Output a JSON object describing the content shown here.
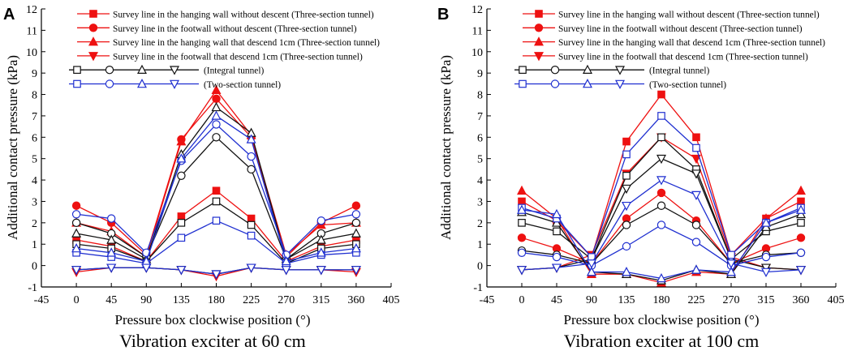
{
  "colors": {
    "red": "#ee1111",
    "black": "#111111",
    "blue": "#1f2fd0",
    "axis": "#000000"
  },
  "legend_entries": [
    "Survey line in the hanging wall without descent (Three-section tunnel)",
    "Survey line in the footwall without descent (Three-section tunnel)",
    "Survey line in the hanging wall that descend 1cm (Three-section tunnel)",
    "Survey line in the footwall that descend 1cm (Three-section tunnel)",
    "(Integral tunnel)",
    "(Two-section tunnel)"
  ],
  "chart_data": [
    {
      "type": "line",
      "panel": "A",
      "caption": "Vibration exciter at 60 cm",
      "xlabel": "Pressure box clockwise position (°)",
      "ylabel": "Additional contact pressure (kPa)",
      "xlim": [
        -45,
        405
      ],
      "ylim": [
        -1,
        12
      ],
      "xticks": [
        -45,
        0,
        45,
        90,
        135,
        180,
        225,
        270,
        315,
        360,
        405
      ],
      "yticks": [
        -1,
        0,
        1,
        2,
        3,
        4,
        5,
        6,
        7,
        8,
        9,
        10,
        11,
        12
      ],
      "x": [
        0,
        45,
        90,
        135,
        180,
        225,
        270,
        315,
        360
      ],
      "series": [
        {
          "name": "Survey line in the hanging wall without descent (Three-section tunnel)",
          "tunnel": "three",
          "marker": "square",
          "values": [
            1.2,
            0.9,
            0.2,
            2.3,
            3.5,
            2.2,
            0.2,
            0.9,
            1.2
          ]
        },
        {
          "name": "Survey line in the footwall without descent (Three-section tunnel)",
          "tunnel": "three",
          "marker": "circle",
          "values": [
            2.8,
            2.0,
            0.5,
            5.9,
            7.8,
            6.0,
            0.4,
            2.0,
            2.8
          ]
        },
        {
          "name": "Survey line in the hanging wall that descend 1cm (Three-section tunnel)",
          "tunnel": "three",
          "marker": "triangle-up",
          "values": [
            2.0,
            1.6,
            0.4,
            5.8,
            8.2,
            6.1,
            0.5,
            1.9,
            2.0
          ]
        },
        {
          "name": "Survey line in the footwall that descend 1cm (Three-section tunnel)",
          "tunnel": "three",
          "marker": "triangle-down",
          "values": [
            -0.3,
            -0.1,
            -0.1,
            -0.2,
            -0.5,
            -0.1,
            -0.2,
            -0.2,
            -0.3
          ]
        },
        {
          "name": "Survey line in the hanging wall without descent (Integral tunnel)",
          "tunnel": "integral",
          "marker": "square",
          "values": [
            1.0,
            0.8,
            0.2,
            2.0,
            3.0,
            1.9,
            0.1,
            0.8,
            1.0
          ]
        },
        {
          "name": "Survey line in the footwall without descent (Integral tunnel)",
          "tunnel": "integral",
          "marker": "circle",
          "values": [
            2.0,
            1.5,
            0.4,
            4.2,
            6.0,
            4.5,
            0.3,
            1.5,
            2.0
          ]
        },
        {
          "name": "Survey line in the hanging wall that descend 1cm (Integral tunnel)",
          "tunnel": "integral",
          "marker": "triangle-up",
          "values": [
            1.5,
            1.2,
            0.3,
            5.2,
            7.4,
            6.2,
            0.3,
            1.2,
            1.5
          ]
        },
        {
          "name": "Survey line in the footwall that descend 1cm (Integral tunnel)",
          "tunnel": "integral",
          "marker": "triangle-down",
          "values": [
            -0.2,
            -0.1,
            -0.1,
            -0.2,
            -0.4,
            -0.1,
            -0.2,
            -0.2,
            -0.2
          ]
        },
        {
          "name": "Survey line in the hanging wall without descent (Two-section tunnel)",
          "tunnel": "two",
          "marker": "square",
          "values": [
            0.6,
            0.4,
            0.1,
            1.3,
            2.1,
            1.4,
            0.1,
            0.5,
            0.6
          ]
        },
        {
          "name": "Survey line in the footwall without descent (Two-section tunnel)",
          "tunnel": "two",
          "marker": "circle",
          "values": [
            2.4,
            2.2,
            0.6,
            4.9,
            6.6,
            5.1,
            0.5,
            2.1,
            2.4
          ]
        },
        {
          "name": "Survey line in the hanging wall that descend 1cm (Two-section tunnel)",
          "tunnel": "two",
          "marker": "triangle-up",
          "values": [
            0.8,
            0.6,
            0.2,
            5.0,
            7.0,
            5.9,
            0.2,
            0.6,
            0.8
          ]
        },
        {
          "name": "Survey line in the footwall that descend 1cm (Two-section tunnel)",
          "tunnel": "two",
          "marker": "triangle-down",
          "values": [
            -0.2,
            -0.1,
            -0.1,
            -0.2,
            -0.4,
            -0.1,
            -0.2,
            -0.2,
            -0.2
          ]
        }
      ]
    },
    {
      "type": "line",
      "panel": "B",
      "caption": "Vibration exciter at 100 cm",
      "xlabel": "Pressure box clockwise position (°)",
      "ylabel": "Additional contact pressure (kPa)",
      "xlim": [
        -45,
        405
      ],
      "ylim": [
        -1,
        12
      ],
      "xticks": [
        -45,
        0,
        45,
        90,
        135,
        180,
        225,
        270,
        315,
        360,
        405
      ],
      "yticks": [
        -1,
        0,
        1,
        2,
        3,
        4,
        5,
        6,
        7,
        8,
        9,
        10,
        11,
        12
      ],
      "x": [
        0,
        45,
        90,
        135,
        180,
        225,
        270,
        315,
        360
      ],
      "series": [
        {
          "name": "Survey line in the hanging wall without descent (Three-section tunnel)",
          "tunnel": "three",
          "marker": "square",
          "values": [
            3.0,
            2.1,
            0.4,
            5.8,
            8.0,
            6.0,
            0.5,
            2.2,
            3.0
          ]
        },
        {
          "name": "Survey line in the footwall without descent (Three-section tunnel)",
          "tunnel": "three",
          "marker": "circle",
          "values": [
            1.3,
            0.8,
            0.1,
            2.2,
            3.4,
            2.1,
            0.1,
            0.8,
            1.3
          ]
        },
        {
          "name": "Survey line in the hanging wall that descend 1cm (Three-section tunnel)",
          "tunnel": "three",
          "marker": "triangle-up",
          "values": [
            3.5,
            2.2,
            -0.4,
            -0.4,
            -0.8,
            -0.3,
            -0.4,
            2.2,
            3.5
          ]
        },
        {
          "name": "Survey line in the footwall that descend 1cm (Three-section tunnel)",
          "tunnel": "three",
          "marker": "triangle-down",
          "values": [
            -0.2,
            -0.1,
            0.5,
            4.3,
            6.0,
            5.0,
            0.4,
            -0.1,
            -0.2
          ]
        },
        {
          "name": "Survey line in the hanging wall without descent (Integral tunnel)",
          "tunnel": "integral",
          "marker": "square",
          "values": [
            2.0,
            1.6,
            0.3,
            4.2,
            6.0,
            4.5,
            0.3,
            1.6,
            2.0
          ]
        },
        {
          "name": "Survey line in the footwall without descent (Integral tunnel)",
          "tunnel": "integral",
          "marker": "circle",
          "values": [
            0.7,
            0.5,
            0.1,
            1.9,
            2.8,
            1.9,
            0.1,
            0.5,
            0.6
          ]
        },
        {
          "name": "Survey line in the hanging wall that descend 1cm (Integral tunnel)",
          "tunnel": "integral",
          "marker": "triangle-up",
          "values": [
            2.5,
            2.0,
            -0.3,
            -0.4,
            -0.7,
            -0.2,
            -0.4,
            1.8,
            2.4
          ]
        },
        {
          "name": "Survey line in the footwall that descend 1cm (Integral tunnel)",
          "tunnel": "integral",
          "marker": "triangle-down",
          "values": [
            -0.2,
            -0.1,
            0.3,
            3.6,
            5.0,
            4.3,
            0.3,
            -0.1,
            -0.2
          ]
        },
        {
          "name": "Survey line in the hanging wall without descent (Two-section tunnel)",
          "tunnel": "two",
          "marker": "square",
          "values": [
            2.7,
            2.2,
            0.4,
            5.2,
            7.0,
            5.5,
            0.5,
            2.0,
            2.7
          ]
        },
        {
          "name": "Survey line in the footwall without descent (Two-section tunnel)",
          "tunnel": "two",
          "marker": "circle",
          "values": [
            0.6,
            0.4,
            0.0,
            0.9,
            1.9,
            1.1,
            0.0,
            0.4,
            0.6
          ]
        },
        {
          "name": "Survey line in the hanging wall that descend 1cm (Two-section tunnel)",
          "tunnel": "two",
          "marker": "triangle-up",
          "values": [
            2.6,
            2.4,
            -0.3,
            -0.3,
            -0.6,
            -0.2,
            -0.3,
            2.0,
            2.6
          ]
        },
        {
          "name": "Survey line in the footwall that descend 1cm (Two-section tunnel)",
          "tunnel": "two",
          "marker": "triangle-down",
          "values": [
            -0.2,
            -0.1,
            0.1,
            2.8,
            4.0,
            3.3,
            0.1,
            -0.3,
            -0.2
          ]
        }
      ]
    }
  ]
}
